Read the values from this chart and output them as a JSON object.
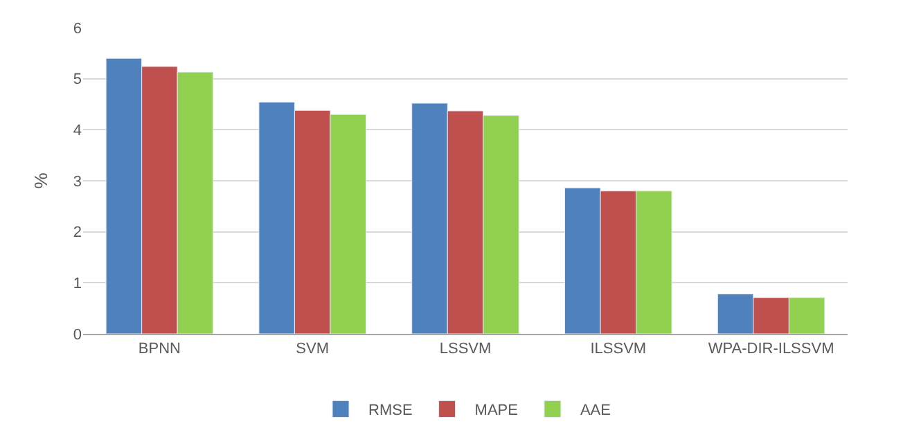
{
  "chart_data": {
    "type": "bar",
    "ylabel": "%",
    "categories": [
      "BPNN",
      "SVM",
      "LSSVM",
      "ILSSVM",
      "WPA-DIR-ILSSVM"
    ],
    "series": [
      {
        "name": "RMSE",
        "color": "#4f81bd",
        "values": [
          5.4,
          4.54,
          4.52,
          2.86,
          0.78
        ]
      },
      {
        "name": "MAPE",
        "color": "#c0504d",
        "values": [
          5.24,
          4.38,
          4.37,
          2.8,
          0.71
        ]
      },
      {
        "name": "AAE",
        "color": "#92d050",
        "values": [
          5.13,
          4.3,
          4.28,
          2.8,
          0.71
        ]
      }
    ],
    "ylim": [
      0,
      6
    ],
    "yticks": [
      0,
      1,
      2,
      3,
      4,
      5,
      6
    ],
    "grid": "y",
    "legend": "bottom"
  }
}
